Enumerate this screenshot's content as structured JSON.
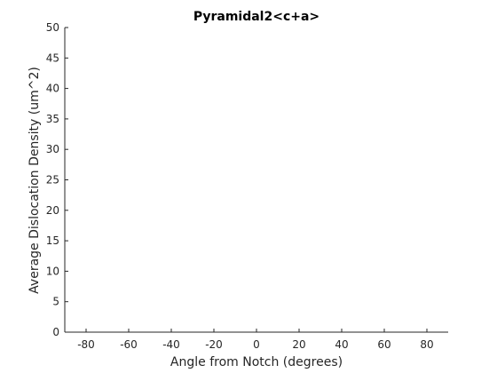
{
  "chart_data": {
    "type": "line",
    "title": "Pyramidal2<c+a>",
    "xlabel": "Angle from Notch (degrees)",
    "ylabel": "Average Dislocation Density (um^2)",
    "xlim": [
      -90,
      90
    ],
    "ylim": [
      0,
      50
    ],
    "xticks": [
      -80,
      -60,
      -40,
      -20,
      0,
      20,
      40,
      60,
      80
    ],
    "yticks": [
      0,
      5,
      10,
      15,
      20,
      25,
      30,
      35,
      40,
      45,
      50
    ],
    "grid": false,
    "series": []
  }
}
